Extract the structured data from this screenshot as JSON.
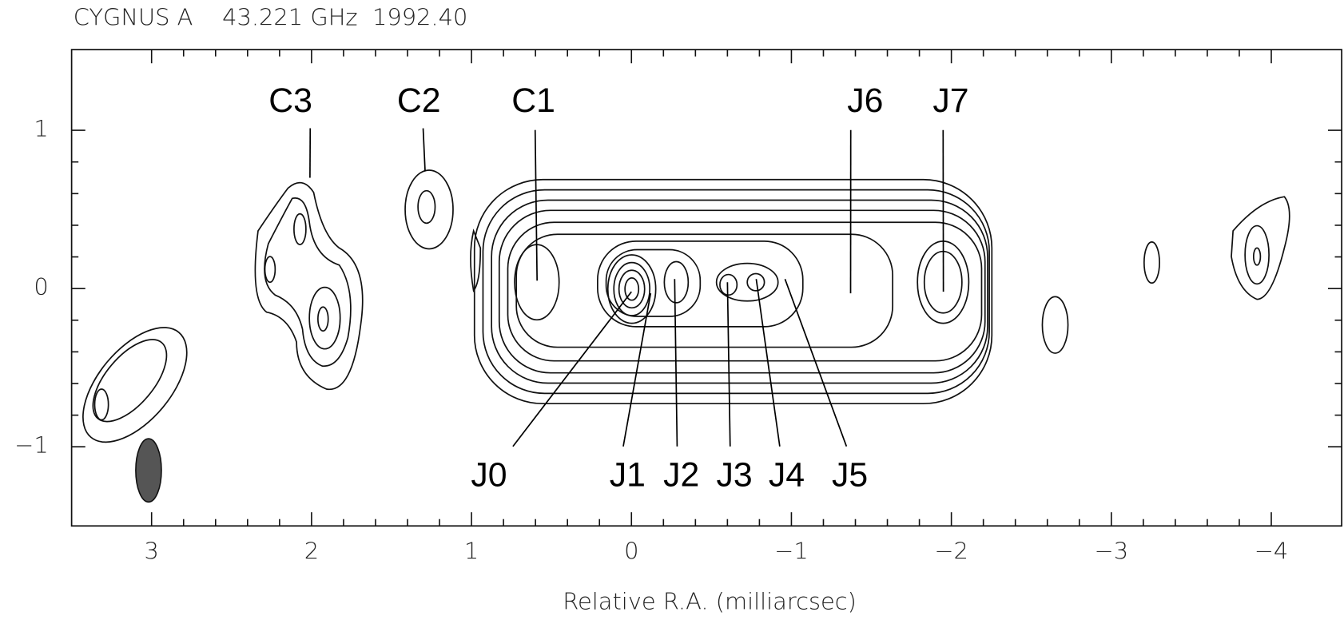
{
  "chart_data": {
    "type": "contour-map",
    "title": "CYGNUS A    43.221 GHz  1992.40",
    "x_label": "Relative R.A. (milliarcsec)",
    "xlim": [
      3.5,
      -4.44
    ],
    "ylim": [
      -1.5,
      1.51
    ],
    "xticks": [
      3,
      2,
      1,
      0,
      {
        "value": -1,
        "label": "−1"
      },
      {
        "value": -2,
        "label": "−2"
      },
      {
        "value": -3,
        "label": "−3"
      },
      {
        "value": -4,
        "label": "−4"
      }
    ],
    "yticks": [
      1,
      0,
      {
        "value": -1,
        "label": "−1"
      }
    ],
    "components": [
      {
        "name": "C3",
        "x": 2.01,
        "y": 0.7
      },
      {
        "name": "C2",
        "x": 1.29,
        "y": 0.74
      },
      {
        "name": "C1",
        "x": 0.59,
        "y": 0.05
      },
      {
        "name": "J6",
        "x": -1.37,
        "y": -0.03
      },
      {
        "name": "J7",
        "x": -1.95,
        "y": -0.02
      },
      {
        "name": "J0",
        "x": 0.0,
        "y": -0.02
      },
      {
        "name": "J1",
        "x": -0.12,
        "y": -0.03
      },
      {
        "name": "J2",
        "x": -0.27,
        "y": 0.06
      },
      {
        "name": "J3",
        "x": -0.6,
        "y": 0.04
      },
      {
        "name": "J4",
        "x": -0.78,
        "y": 0.06
      },
      {
        "name": "J5",
        "x": -0.96,
        "y": 0.06
      }
    ]
  }
}
